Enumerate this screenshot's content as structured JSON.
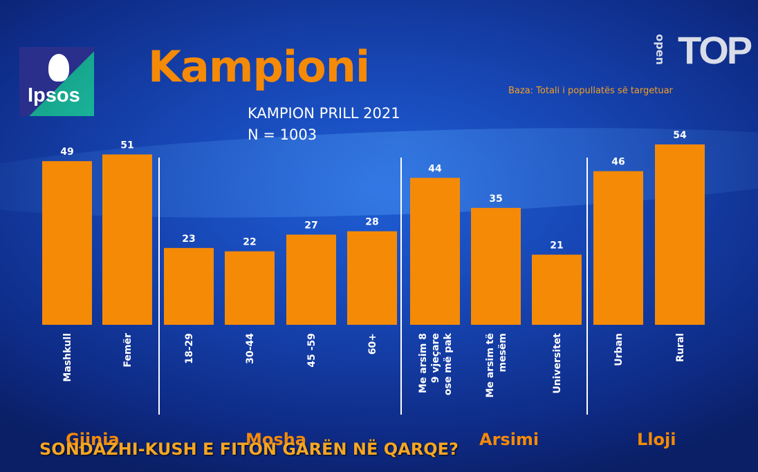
{
  "header": {
    "title": "Kampioni",
    "subtitle": "KAMPION PRILL 2021",
    "n_label": "N = 1003",
    "base_note": "Baza: Totali i popullatës së targetuar"
  },
  "logos": {
    "ipsos_text": "Ipsos",
    "channel_small": "open",
    "channel_word": "TOP"
  },
  "ticker": "SONDAZHI-KUSH E FITON GARËN NË QARQE?",
  "colors": {
    "bar": "#f58a07",
    "title": "#f58a07",
    "label": "#ffffff",
    "accent": "#f5a623"
  },
  "chart_data": {
    "type": "bar",
    "categories": [
      "Mashkull",
      "Femër",
      "18-29",
      "30-44",
      "45 -59",
      "60+",
      "Me arsim 8 9 vjeçare ose më pak",
      "Me arsim të mesëm",
      "Universitet",
      "Urban",
      "Rural"
    ],
    "category_lines": [
      [
        "Mashkull"
      ],
      [
        "Femër"
      ],
      [
        "18-29"
      ],
      [
        "30-44"
      ],
      [
        "45 -59"
      ],
      [
        "60+"
      ],
      [
        "Me arsim 8",
        "9 vjeçare",
        "ose më pak"
      ],
      [
        "Me arsim të",
        "mesëm"
      ],
      [
        "Universitet"
      ],
      [
        "Urban"
      ],
      [
        "Rural"
      ]
    ],
    "values": [
      49,
      51,
      23,
      22,
      27,
      28,
      44,
      35,
      21,
      46,
      54
    ],
    "groups": [
      {
        "name": "Gjinia",
        "members": [
          0,
          1
        ]
      },
      {
        "name": "Mosha",
        "members": [
          2,
          3,
          4,
          5
        ]
      },
      {
        "name": "Arsimi",
        "members": [
          6,
          7,
          8
        ]
      },
      {
        "name": "Lloji",
        "members": [
          9,
          10
        ]
      }
    ],
    "title": "Kampioni",
    "subtitle": "KAMPION PRILL 2021",
    "ylim": [
      0,
      54
    ],
    "grid": false,
    "data_labels": true
  }
}
